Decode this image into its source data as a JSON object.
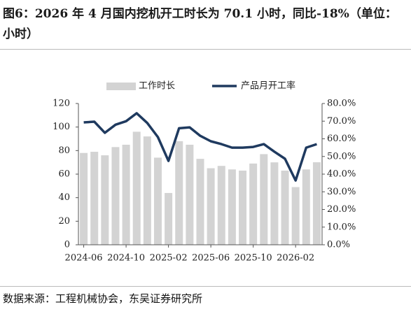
{
  "chart_data": {
    "type": "bar-line",
    "title": "图6：2026 年 4 月国内挖机开工时长为 70.1 小时，同比-18%（单位：小时）",
    "source": "数据来源：工程机械协会，东吴证券研究所",
    "categories": [
      "2024-06",
      null,
      null,
      null,
      "2024-10",
      null,
      null,
      null,
      "2025-02",
      null,
      null,
      null,
      "2025-06",
      null,
      null,
      null,
      "2025-10",
      null,
      null,
      null,
      "2026-02",
      null,
      null
    ],
    "series": [
      {
        "name": "工作时长",
        "color": "#d3d3d3",
        "type": "bar",
        "values": [
          78,
          79,
          76,
          83,
          85,
          96,
          92,
          74,
          44,
          88,
          85,
          73,
          65,
          67,
          64,
          63,
          69,
          77,
          70,
          63,
          49,
          64,
          70.1
        ]
      },
      {
        "name": "产品月开工率",
        "color": "#1f3a5f",
        "type": "line",
        "axis": "y2",
        "values": [
          69.3,
          69.7,
          63.4,
          68,
          70,
          74.5,
          69,
          61,
          47.5,
          66,
          66.5,
          61.7,
          58.6,
          57,
          55,
          55,
          55.4,
          57,
          52.7,
          48.7,
          36.4,
          55,
          57
        ]
      }
    ],
    "ylim": [
      0,
      120
    ],
    "yticks": [
      0,
      20,
      40,
      60,
      80,
      100,
      120
    ],
    "y2lim": [
      0,
      80
    ],
    "y2ticks": [
      {
        "value": 0,
        "label": "0.0%"
      },
      {
        "value": 10,
        "label": "10.0%"
      },
      {
        "value": 20,
        "label": "20.0%"
      },
      {
        "value": 30,
        "label": "30.0%"
      },
      {
        "value": 40,
        "label": "40.0%"
      },
      {
        "value": 50,
        "label": "50.0%"
      },
      {
        "value": 60,
        "label": "60.0%"
      },
      {
        "value": 70,
        "label": "70.0%"
      },
      {
        "value": 80,
        "label": "80.0%"
      }
    ],
    "legend": "top"
  }
}
